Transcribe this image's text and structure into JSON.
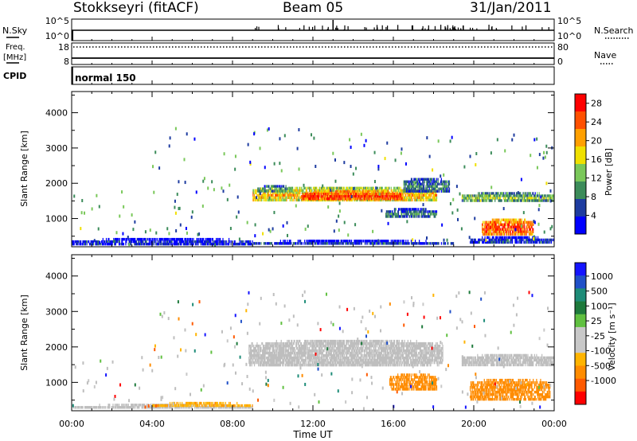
{
  "header": {
    "station": "Stokkseyri (fitACF)",
    "beam": "Beam 05",
    "date": "31/Jan/2011"
  },
  "status_strips": {
    "nsky_label": "N.Sky",
    "nsky_ticks": [
      "10^5",
      "10^0"
    ],
    "nsearch_label": "N.Search",
    "freq_label_1": "Freq.",
    "freq_label_2": "[MHz]",
    "freq_ticks": [
      "18",
      "8"
    ],
    "nave_label": "Nave",
    "nave_ticks": [
      "80",
      "0"
    ],
    "cpid_label": "CPID",
    "cpid_value": "normal 150"
  },
  "colors": {
    "power_scale": [
      "#0000ff",
      "#1e3ca0",
      "#3c8c5a",
      "#7ac85a",
      "#f0e000",
      "#ffa000",
      "#ff5000",
      "#ff0000"
    ],
    "velocity_scale": [
      "#ff0000",
      "#ff5a00",
      "#ff8c00",
      "#ffb400",
      "#c8c8c8",
      "#c8c8c8",
      "#60c040",
      "#1e7a3c",
      "#1e8c78",
      "#2050c8",
      "#1414ff"
    ],
    "ground_scatter": "#bebebe"
  },
  "chart_data": [
    {
      "type": "heatmap",
      "panel": "power",
      "ylabel": "Slant Range [km]",
      "yticks": [
        "1000",
        "2000",
        "3000",
        "4000"
      ],
      "ylim": [
        200,
        4600
      ],
      "xticks": [
        "00:00",
        "04:00",
        "08:00",
        "12:00",
        "16:00",
        "20:00",
        "00:00"
      ],
      "xlim_hours": [
        0,
        24
      ],
      "colorbar_label": "Power [dB]",
      "colorbar_ticks": [
        "4",
        "8",
        "12",
        "16",
        "20",
        "24",
        "28"
      ],
      "colorbar_range": [
        0,
        30
      ],
      "regions": [
        {
          "t0": 9.0,
          "t1": 18.2,
          "r0": 1450,
          "r1": 1900,
          "value": 20
        },
        {
          "t0": 11.4,
          "t1": 16.5,
          "r0": 1500,
          "r1": 1800,
          "value": 27
        },
        {
          "t0": 9.2,
          "t1": 11.0,
          "r0": 1700,
          "r1": 1950,
          "value": 13
        },
        {
          "t0": 16.5,
          "t1": 18.8,
          "r0": 1700,
          "r1": 2150,
          "value": 10
        },
        {
          "t0": 15.6,
          "t1": 18.2,
          "r0": 1000,
          "r1": 1300,
          "value": 9
        },
        {
          "t0": 19.4,
          "t1": 24.0,
          "r0": 1450,
          "r1": 1750,
          "value": 14
        },
        {
          "t0": 20.4,
          "t1": 23.0,
          "r0": 500,
          "r1": 1000,
          "value": 26
        },
        {
          "t0": 19.8,
          "t1": 24.0,
          "r0": 250,
          "r1": 500,
          "value": 6
        },
        {
          "t0": 0.0,
          "t1": 9.0,
          "r0": 200,
          "r1": 450,
          "value": 5
        },
        {
          "t0": 9.0,
          "t1": 19.0,
          "r0": 200,
          "r1": 400,
          "value": 5
        }
      ]
    },
    {
      "type": "heatmap",
      "panel": "velocity",
      "ylabel": "Slant Range [km]",
      "yticks": [
        "1000",
        "2000",
        "3000",
        "4000"
      ],
      "ylim": [
        200,
        4600
      ],
      "xlabel": "Time UT",
      "xticks": [
        "00:00",
        "04:00",
        "08:00",
        "12:00",
        "16:00",
        "20:00",
        "00:00"
      ],
      "xlim_hours": [
        0,
        24
      ],
      "colorbar_label": "Velocity [m s⁻¹]",
      "colorbar_ticks": [
        "1000",
        "500",
        "100",
        "25",
        "-25",
        "-100",
        "-500",
        "-1000"
      ],
      "regions": [
        {
          "t0": 8.8,
          "t1": 18.5,
          "r0": 1450,
          "r1": 2200,
          "value": "ground"
        },
        {
          "t0": 19.4,
          "t1": 24.0,
          "r0": 1450,
          "r1": 1800,
          "value": "ground"
        },
        {
          "t0": 15.8,
          "t1": 18.2,
          "r0": 750,
          "r1": 1250,
          "value": -300
        },
        {
          "t0": 19.8,
          "t1": 23.8,
          "r0": 450,
          "r1": 1100,
          "value": -400
        },
        {
          "t0": 0.0,
          "t1": 9.0,
          "r0": 200,
          "r1": 400,
          "value": "ground"
        },
        {
          "t0": 4.0,
          "t1": 9.0,
          "r0": 250,
          "r1": 450,
          "value": -80
        }
      ]
    }
  ]
}
